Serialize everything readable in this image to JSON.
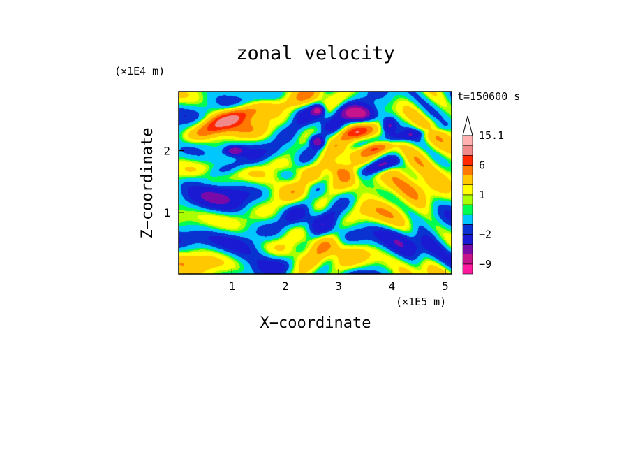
{
  "chart_data": {
    "type": "heatmap",
    "title": "zonal velocity",
    "xlabel": "X−coordinate",
    "ylabel": "Z−coordinate",
    "x_scale_label": "(×1E5 m)",
    "y_scale_label": "(×1E4 m)",
    "time_label": "t=150600 s",
    "xlim": [
      0,
      5.12
    ],
    "ylim": [
      0,
      2.96
    ],
    "x_ticks": [
      1,
      2,
      3,
      4,
      5
    ],
    "y_ticks": [
      1,
      2
    ],
    "x_tick_labels": [
      "1",
      "2",
      "3",
      "4",
      "5"
    ],
    "y_tick_labels": [
      "1",
      "2"
    ],
    "colorbar": {
      "levels": [
        -12,
        -9,
        -6,
        -4,
        -2,
        -1,
        0,
        0.5,
        1,
        2,
        4,
        6,
        8,
        11,
        15.1
      ],
      "colors": [
        "#ff1aa0",
        "#c8148c",
        "#7a0aa8",
        "#1a1ad2",
        "#0a32d0",
        "#00c8ff",
        "#00ff50",
        "#aaff00",
        "#ffff00",
        "#ffc800",
        "#ff7800",
        "#ff2800",
        "#f08a8a",
        "#ffb0b0"
      ],
      "labels": [
        {
          "value": 15.1,
          "text": "15.1"
        },
        {
          "value": 6,
          "text": "6"
        },
        {
          "value": 1,
          "text": "1"
        },
        {
          "value": -2,
          "text": "−2"
        },
        {
          "value": -9,
          "text": "−9"
        }
      ],
      "extend_top": true
    },
    "field_features": [
      {
        "x": 0.8,
        "z": 2.45,
        "u": 7.0,
        "sx": 0.45,
        "sz": 0.1,
        "tilt": -0.35
      },
      {
        "x": 1.6,
        "z": 2.7,
        "u": 3.5,
        "sx": 0.6,
        "sz": 0.1,
        "tilt": -0.2
      },
      {
        "x": 2.2,
        "z": 1.7,
        "u": 3.0,
        "sx": 0.6,
        "sz": 0.1,
        "tilt": 0.3
      },
      {
        "x": 3.35,
        "z": 2.6,
        "u": -8.0,
        "sx": 0.22,
        "sz": 0.09,
        "tilt": 0.1
      },
      {
        "x": 3.75,
        "z": 1.75,
        "u": -7.5,
        "sx": 0.25,
        "sz": 0.08,
        "tilt": -0.25
      },
      {
        "x": 3.7,
        "z": 2.05,
        "u": 8.0,
        "sx": 0.22,
        "sz": 0.08,
        "tilt": -0.2
      },
      {
        "x": 3.35,
        "z": 2.3,
        "u": 7.0,
        "sx": 0.22,
        "sz": 0.08,
        "tilt": -0.15
      },
      {
        "x": 3.05,
        "z": 1.65,
        "u": 6.0,
        "sx": 0.22,
        "sz": 0.1,
        "tilt": 0.4
      },
      {
        "x": 2.62,
        "z": 2.65,
        "u": -6.0,
        "sx": 0.08,
        "sz": 0.06,
        "tilt": 0.0
      },
      {
        "x": 2.6,
        "z": 2.15,
        "u": -5.5,
        "sx": 0.1,
        "sz": 0.07,
        "tilt": 0.3
      },
      {
        "x": 1.05,
        "z": 2.0,
        "u": -5.0,
        "sx": 0.12,
        "sz": 0.05,
        "tilt": 0.0
      },
      {
        "x": 3.95,
        "z": 2.4,
        "u": -5.0,
        "sx": 0.1,
        "sz": 0.1,
        "tilt": 0.0
      },
      {
        "x": 4.5,
        "z": 2.0,
        "u": 4.0,
        "sx": 0.5,
        "sz": 0.2,
        "tilt": -0.3
      },
      {
        "x": 3.6,
        "z": 1.4,
        "u": 3.0,
        "sx": 0.3,
        "sz": 0.12,
        "tilt": 0.0
      },
      {
        "x": 4.5,
        "z": 1.3,
        "u": 3.5,
        "sx": 0.45,
        "sz": 0.18,
        "tilt": 0.2
      },
      {
        "x": 4.05,
        "z": 2.2,
        "u": -3.0,
        "sx": 0.6,
        "sz": 0.06,
        "tilt": -0.2
      },
      {
        "x": 1.2,
        "z": 0.8,
        "u": -1.5,
        "sx": 0.7,
        "sz": 0.25,
        "tilt": 0.25
      },
      {
        "x": 2.2,
        "z": 0.3,
        "u": 2.0,
        "sx": 0.6,
        "sz": 0.12,
        "tilt": 0.3
      },
      {
        "x": 3.2,
        "z": 0.4,
        "u": 2.0,
        "sx": 0.5,
        "sz": 0.12,
        "tilt": 0.2
      },
      {
        "x": 4.3,
        "z": 0.55,
        "u": -1.5,
        "sx": 0.5,
        "sz": 0.2,
        "tilt": 0.15
      },
      {
        "x": 0.9,
        "z": 1.7,
        "u": -2.5,
        "sx": 0.55,
        "sz": 0.08,
        "tilt": -0.25
      }
    ]
  }
}
